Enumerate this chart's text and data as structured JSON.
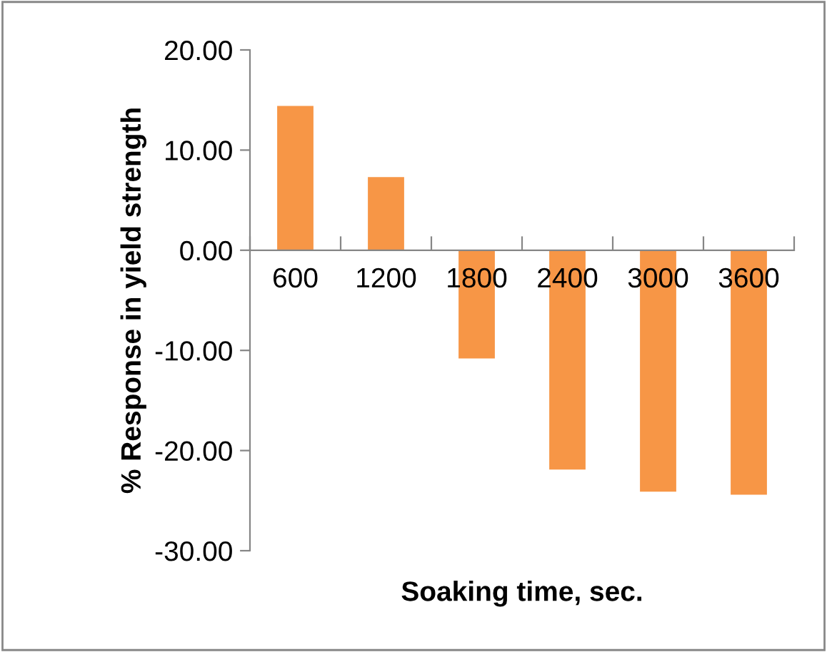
{
  "chart_data": {
    "type": "bar",
    "xlabel": "Soaking time, sec.",
    "ylabel": "% Response in yield strength",
    "categories": [
      "600",
      "1200",
      "1800",
      "2400",
      "3000",
      "3600"
    ],
    "values": [
      14.4,
      7.3,
      -10.8,
      -21.9,
      -24.1,
      -24.4
    ],
    "color": "#f79646",
    "ylim": [
      -30,
      20
    ],
    "yticks": [
      {
        "value": -30,
        "label": "-30.00"
      },
      {
        "value": -20,
        "label": "-20.00"
      },
      {
        "value": -10,
        "label": "-10.00"
      },
      {
        "value": 0,
        "label": "0.00"
      },
      {
        "value": 10,
        "label": "10.00"
      },
      {
        "value": 20,
        "label": "20.00"
      }
    ],
    "grid": false,
    "legend": false
  }
}
